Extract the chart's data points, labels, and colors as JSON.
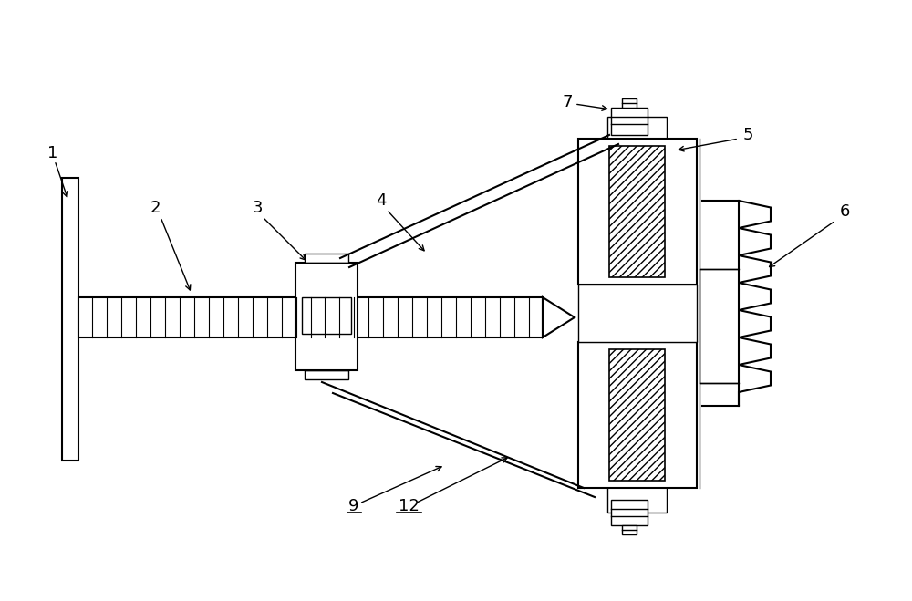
{
  "bg_color": "#ffffff",
  "line_color": "#000000",
  "fig_width": 10.0,
  "fig_height": 6.59,
  "dpi": 100
}
